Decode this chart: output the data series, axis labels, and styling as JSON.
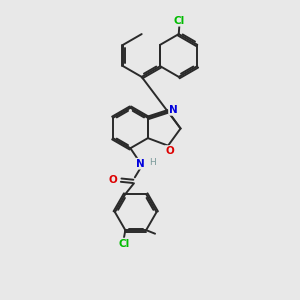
{
  "background_color": "#e8e8e8",
  "bond_color": "#2a2a2a",
  "bond_width": 1.4,
  "atom_colors": {
    "Cl": "#00bb00",
    "N": "#0000dd",
    "O": "#dd0000",
    "H": "#7a9a9a",
    "C": "#2a2a2a"
  },
  "figsize": [
    3.0,
    3.0
  ],
  "dpi": 100
}
